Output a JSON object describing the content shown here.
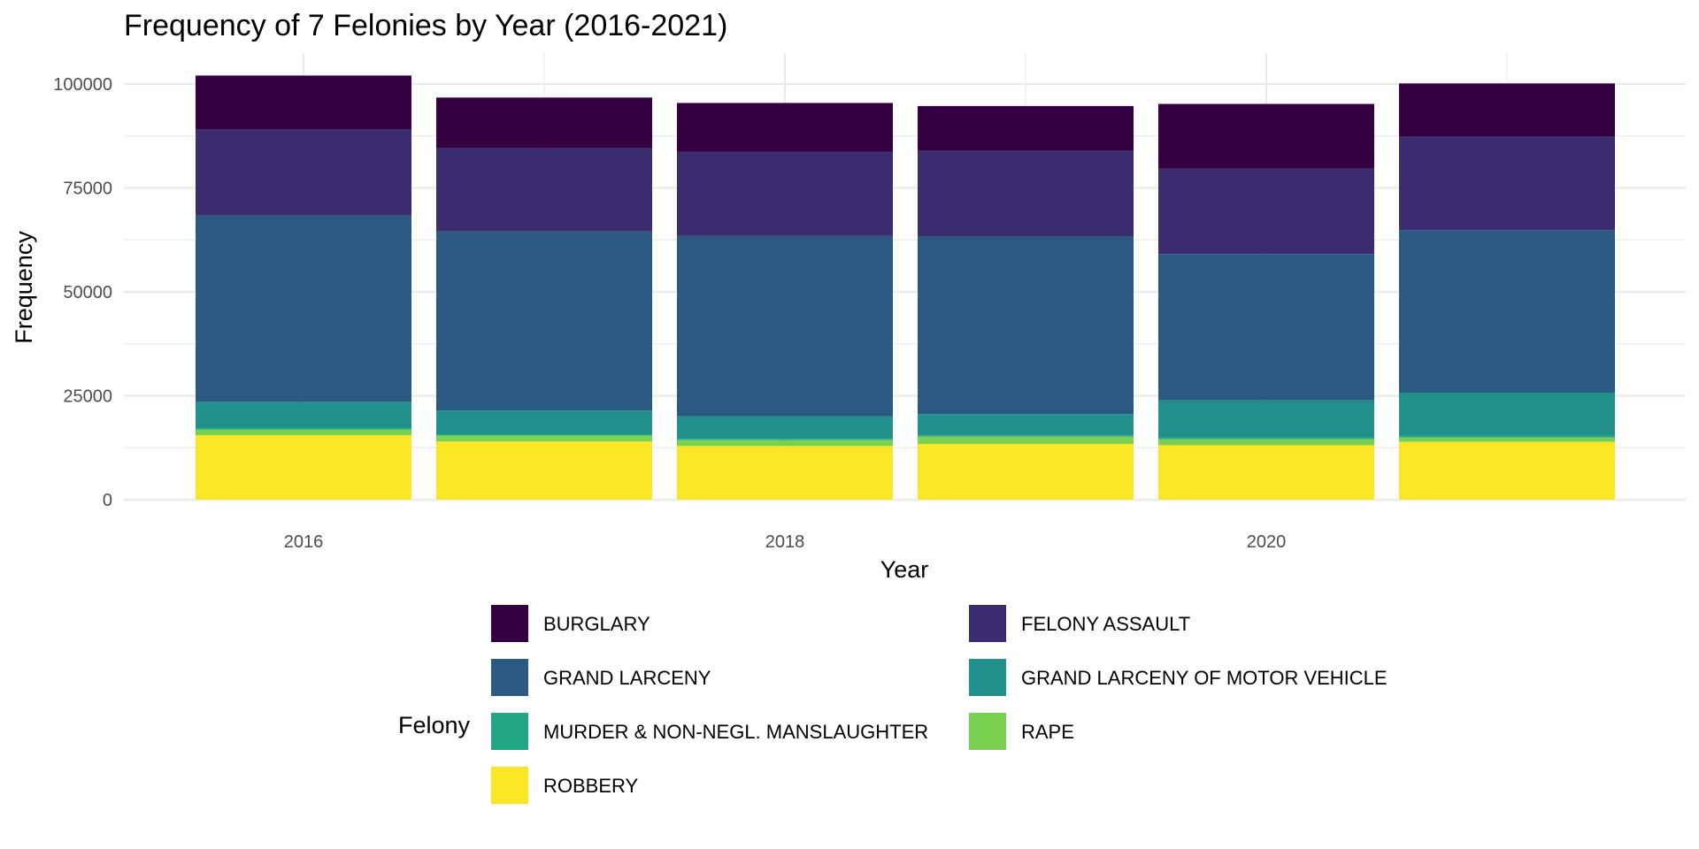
{
  "chart_data": {
    "type": "bar",
    "stacked": true,
    "title": "Frequency of 7 Felonies by Year (2016-2021)",
    "xlabel": "Year",
    "ylabel": "Frequency",
    "categories": [
      2016,
      2017,
      2018,
      2019,
      2020,
      2021
    ],
    "x_ticks": [
      2016,
      2018,
      2020
    ],
    "y_ticks": [
      0,
      25000,
      50000,
      75000,
      100000
    ],
    "ylim": [
      0,
      108000
    ],
    "grid": true,
    "legend_title": "Felony",
    "legend_position": "bottom",
    "series": [
      {
        "name": "ROBBERY",
        "color": "#FDE725",
        "values": [
          15500,
          14000,
          12900,
          13400,
          13100,
          13900
        ]
      },
      {
        "name": "RAPE",
        "color": "#7AD151",
        "values": [
          1400,
          1450,
          1450,
          1800,
          1450,
          1050
        ]
      },
      {
        "name": "MURDER & NON-NEGL. MANSLAUGHTER",
        "color": "#22A884",
        "values": [
          340,
          290,
          290,
          300,
          460,
          490
        ]
      },
      {
        "name": "GRAND LARCENY OF MOTOR VEHICLE",
        "color": "#21908C",
        "values": [
          6300,
          5700,
          5400,
          5100,
          8900,
          10300
        ]
      },
      {
        "name": "GRAND LARCENY",
        "color": "#2A5A82",
        "values": [
          44800,
          43100,
          43400,
          42800,
          35200,
          39100
        ]
      },
      {
        "name": "FELONY ASSAULT",
        "color": "#3A2C6E",
        "values": [
          20800,
          20000,
          20200,
          20500,
          20500,
          22600
        ]
      },
      {
        "name": "BURGLARY",
        "color": "#350042",
        "values": [
          12900,
          12200,
          11800,
          10800,
          15600,
          12700
        ]
      }
    ],
    "legend_order": [
      "BURGLARY",
      "FELONY ASSAULT",
      "GRAND LARCENY",
      "GRAND LARCENY OF MOTOR VEHICLE",
      "MURDER & NON-NEGL. MANSLAUGHTER",
      "RAPE",
      "ROBBERY"
    ]
  }
}
